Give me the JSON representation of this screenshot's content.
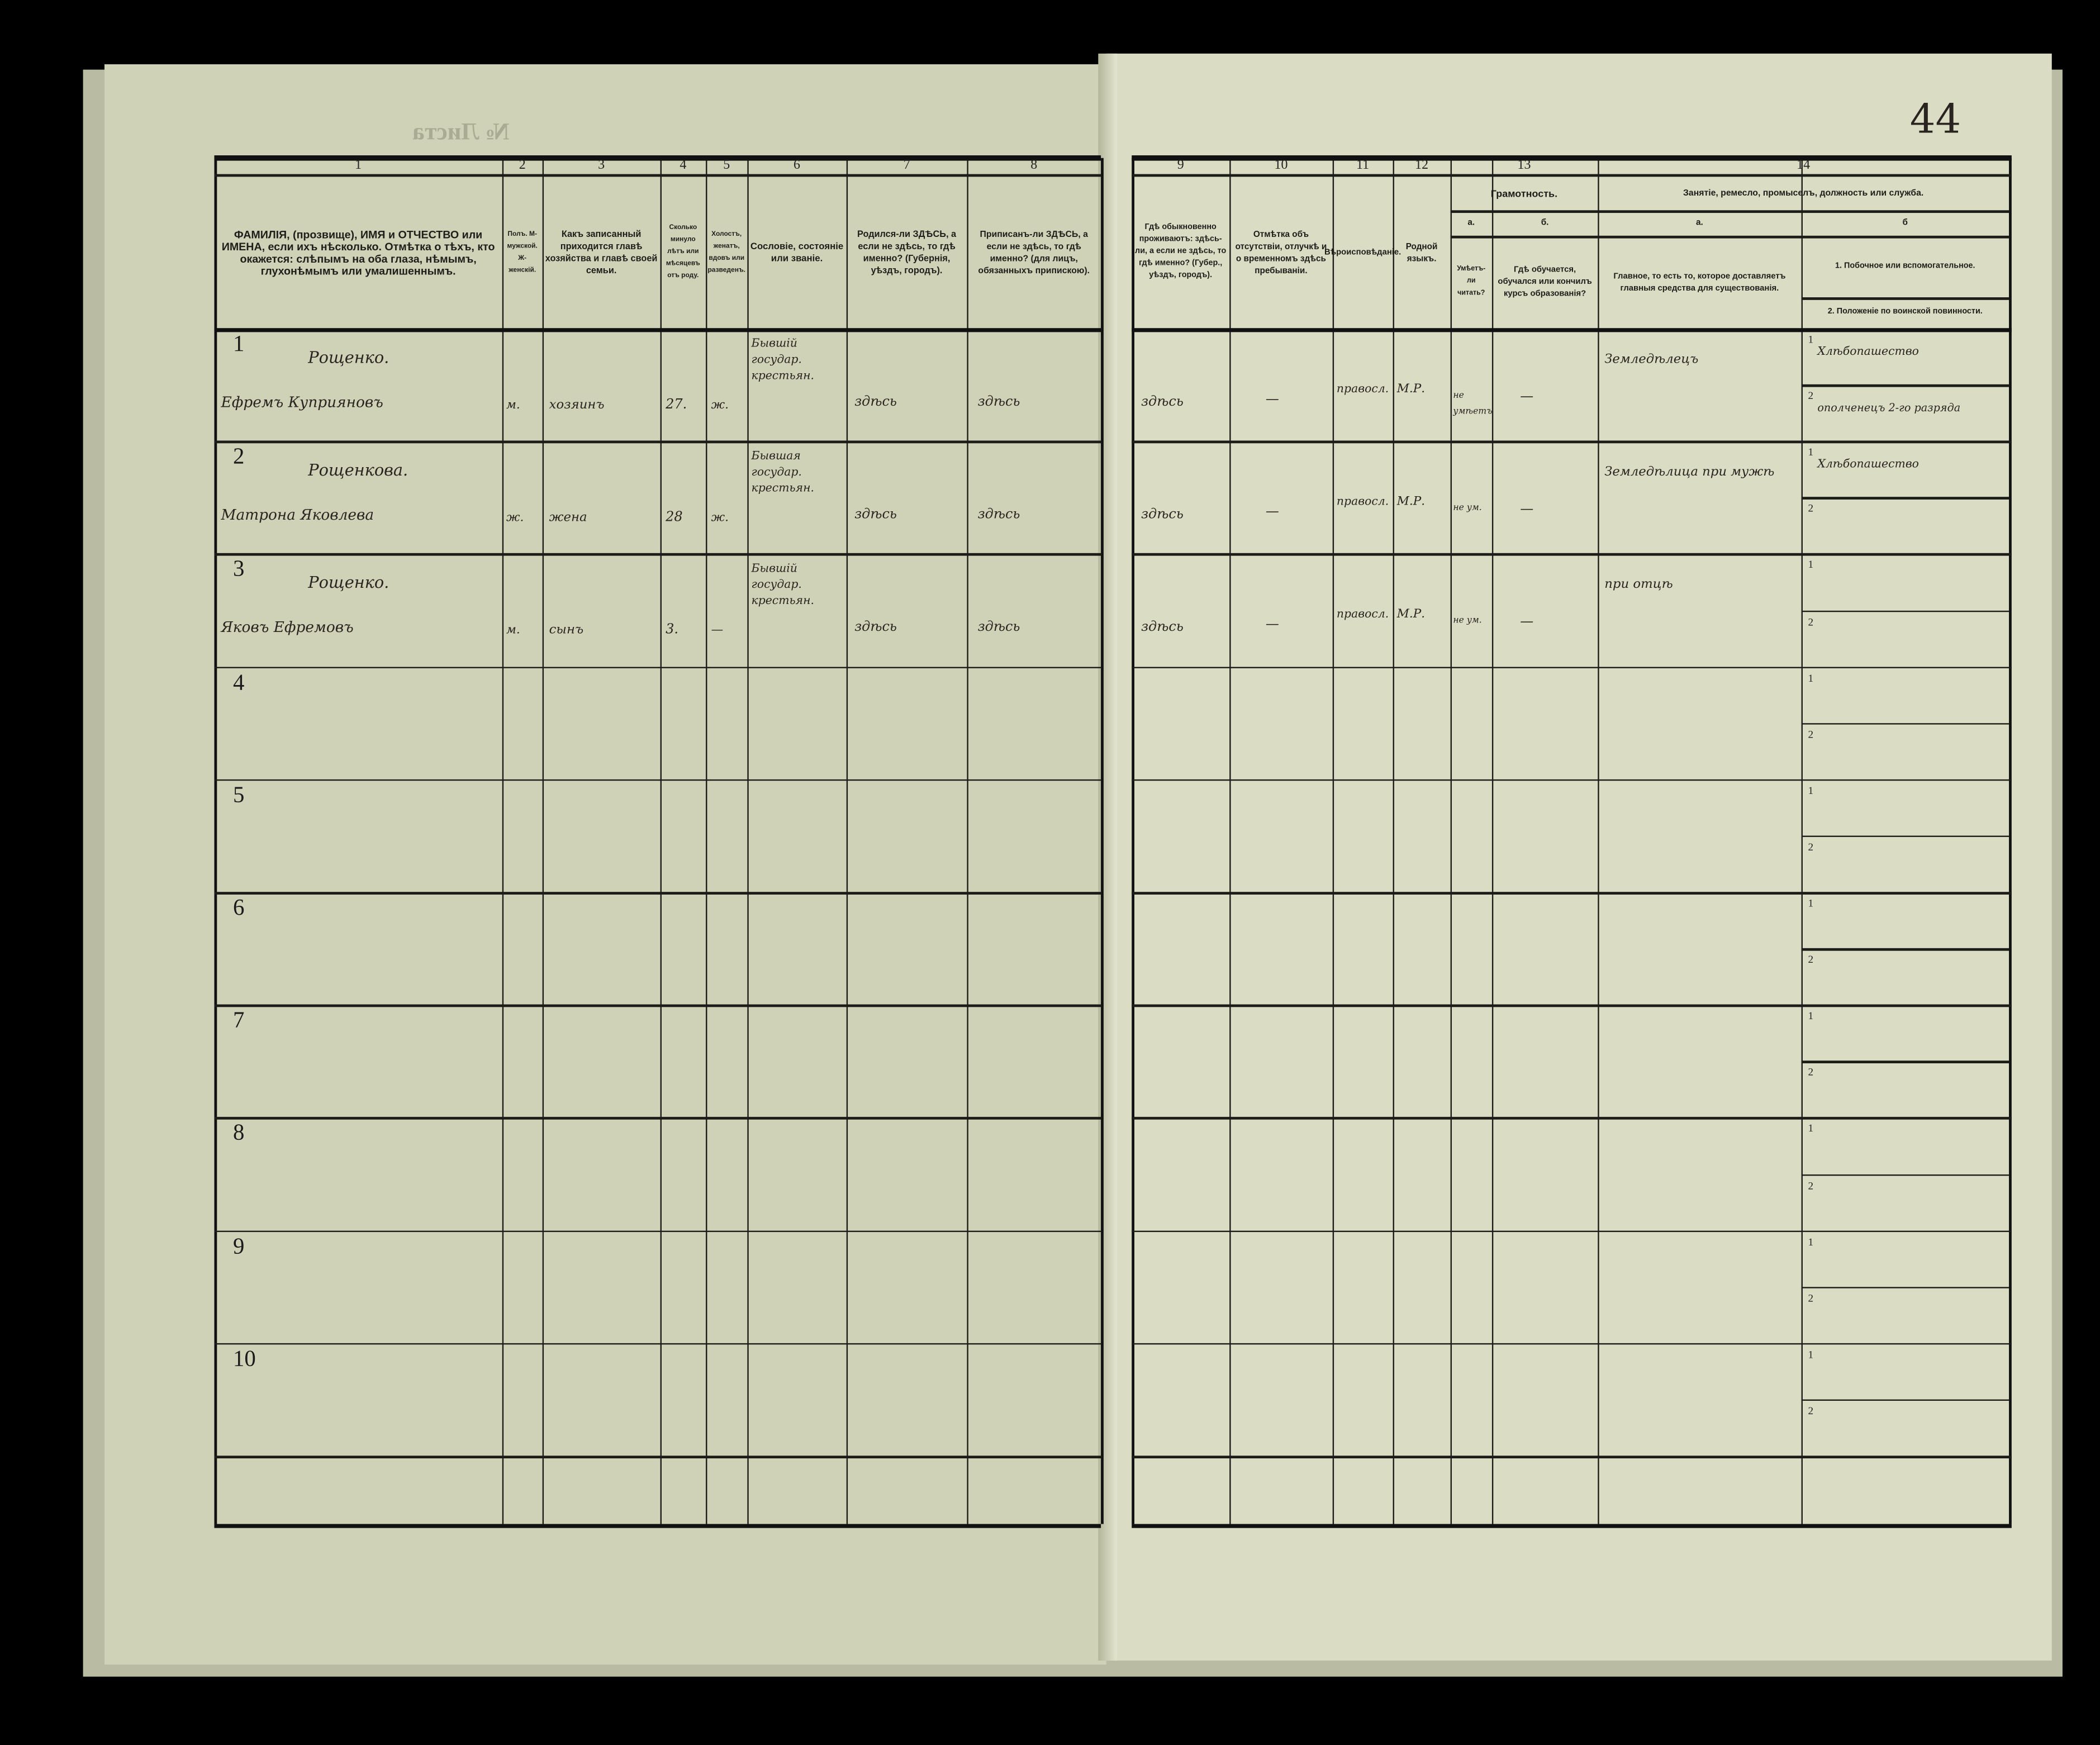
{
  "document": {
    "sheet_label": "№ Листа",
    "page_number": "44"
  },
  "header": {
    "col_numbers": [
      "1",
      "2",
      "3",
      "4",
      "5",
      "6",
      "7",
      "8",
      "9",
      "10",
      "11",
      "12",
      "13",
      "14"
    ],
    "c1": "ФАМИЛІЯ, (прозвище), ИМЯ и ОТЧЕСТВО или ИМЕНА, если ихъ нѣсколько. Отмѣтка о тѣхъ, кто окажется: слѣпымъ на оба глаза, нѣмымъ, глухонѣмымъ или умалишеннымъ.",
    "c2": "Полъ. М-мужской. Ж-женскій.",
    "c3": "Какъ записанный приходится главѣ хозяйства и главѣ своей семьи.",
    "c4": "Сколько минуло лѣтъ или мѣсяцевъ отъ роду.",
    "c5": "Холостъ, женатъ, вдовъ или разведенъ.",
    "c6": "Сословіе, состояніе или званіе.",
    "c7": "Родился-ли ЗДѢСЬ, а если не здѣсь, то гдѣ именно? (Губернія, уѣздъ, городъ).",
    "c8": "Приписанъ-ли ЗДѢСЬ, а если не здѣсь, то гдѣ именно? (для лицъ, обязанныхъ припискою).",
    "c9": "Гдѣ обыкновенно проживаютъ: здѣсь-ли, а если не здѣсь, то гдѣ именно? (Губер., уѣздъ, городъ).",
    "c10": "Отмѣтка объ отсутствіи, отлучкѣ и о временномъ здѣсь пребываніи.",
    "c11": "Вѣроисповѣданіе.",
    "c12": "Родной языкъ.",
    "c13": "Грамотность.",
    "c13a_label": "а.",
    "c13a": "Умѣетъ-ли читать?",
    "c13b_label": "б.",
    "c13b": "Гдѣ обучается, обучался или кончилъ курсъ образованія?",
    "c14": "Занятіе, ремесло, промыселъ, должность или служба.",
    "c14a_label": "а.",
    "c14a": "Главное, то есть то, которое доставляетъ главныя средства для существованія.",
    "c14b_label": "б",
    "c14b1": "1. Побочное или вспомогательное.",
    "c14b2": "2. Положеніе по воинской повинности."
  },
  "subrow_labels": [
    "1",
    "2"
  ],
  "rows": [
    {
      "n": "1",
      "surname": "Рощенко.",
      "name": "Ефремъ Куприяновъ",
      "sex": "м.",
      "relation": "хозяинъ",
      "age": "27.",
      "marital": "ж.",
      "estate": "Бывшій государ. крестьян.",
      "born": "здѣсь",
      "registered": "здѣсь",
      "resides": "здѣсь",
      "absence": "—",
      "religion": "правосл.",
      "language": "М.Р.",
      "literate": "не умѣетъ",
      "education": "—",
      "occupation": "Земледѣлецъ",
      "side": "Хлѣбопашество",
      "military": "ополченецъ 2-го разряда"
    },
    {
      "n": "2",
      "surname": "Рощенкова.",
      "name": "Матрона Яковлева",
      "sex": "ж.",
      "relation": "жена",
      "age": "28",
      "marital": "ж.",
      "estate": "Бывшая государ. крестьян.",
      "born": "здѣсь",
      "registered": "здѣсь",
      "resides": "здѣсь",
      "absence": "—",
      "religion": "правосл.",
      "language": "М.Р.",
      "literate": "не ум.",
      "education": "—",
      "occupation": "Земледѣлица при мужѣ",
      "side": "Хлѣбопашество",
      "military": ""
    },
    {
      "n": "3",
      "surname": "Рощенко.",
      "name": "Яковъ Ефремовъ",
      "sex": "м.",
      "relation": "сынъ",
      "age": "3.",
      "marital": "—",
      "estate": "Бывшій государ. крестьян.",
      "born": "здѣсь",
      "registered": "здѣсь",
      "resides": "здѣсь",
      "absence": "—",
      "religion": "правосл.",
      "language": "М.Р.",
      "literate": "не ум.",
      "education": "—",
      "occupation": "при отцѣ",
      "side": "",
      "military": ""
    },
    {
      "n": "4"
    },
    {
      "n": "5"
    },
    {
      "n": "6"
    },
    {
      "n": "7"
    },
    {
      "n": "8"
    },
    {
      "n": "9"
    },
    {
      "n": "10"
    }
  ],
  "colors": {
    "paper": "#dadcc4",
    "ink": "#1c1c18",
    "handwriting": "#2a2420",
    "background": "#000000"
  }
}
